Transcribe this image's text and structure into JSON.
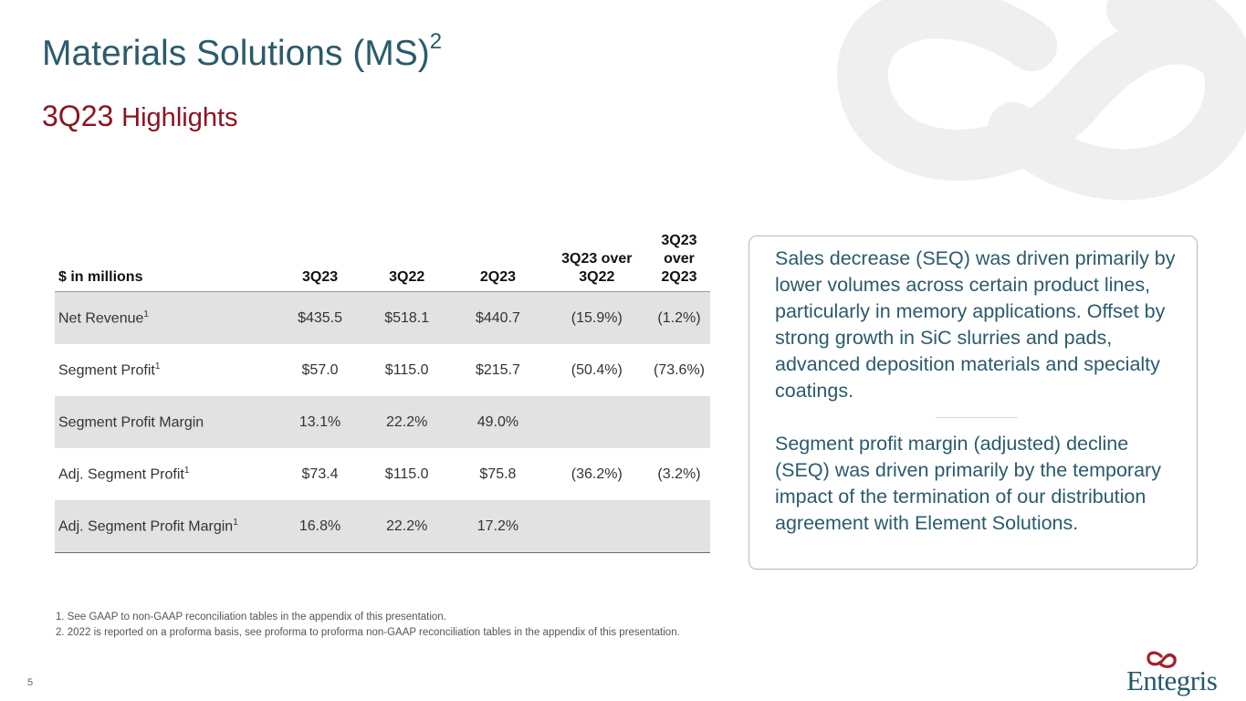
{
  "header": {
    "title": "Materials Solutions (MS)",
    "title_sup": "2",
    "subtitle_period": "3Q23",
    "subtitle_text": "Highlights"
  },
  "table": {
    "columns": [
      {
        "l1": "",
        "l2": "$ in millions"
      },
      {
        "l1": "",
        "l2": "3Q23"
      },
      {
        "l1": "",
        "l2": "3Q22"
      },
      {
        "l1": "",
        "l2": "2Q23"
      },
      {
        "l1": "3Q23 over",
        "l2": "3Q22"
      },
      {
        "l1": "3Q23 over",
        "l2": "2Q23"
      }
    ],
    "rows": [
      {
        "label": "Net Revenue",
        "sup": "1",
        "q323": "$435.5",
        "q322": "$518.1",
        "q223": "$440.7",
        "yoy": "(15.9%)",
        "seq": "(1.2%)"
      },
      {
        "label": "Segment Profit",
        "sup": "1",
        "q323": "$57.0",
        "q322": "$115.0",
        "q223": "$215.7",
        "yoy": "(50.4%)",
        "seq": "(73.6%)"
      },
      {
        "label": "Segment Profit Margin",
        "sup": "",
        "q323": "13.1%",
        "q322": "22.2%",
        "q223": "49.0%",
        "yoy": "",
        "seq": ""
      },
      {
        "label": "Adj. Segment Profit",
        "sup": "1",
        "q323": "$73.4",
        "q322": "$115.0",
        "q223": "$75.8",
        "yoy": "(36.2%)",
        "seq": "(3.2%)"
      },
      {
        "label": "Adj. Segment Profit Margin",
        "sup": "1",
        "q323": "16.8%",
        "q322": "22.2%",
        "q223": "17.2%",
        "yoy": "",
        "seq": ""
      }
    ]
  },
  "commentary": {
    "paragraph1": "Sales decrease (SEQ) was driven primarily by lower volumes across certain product lines, particularly in memory applications. Offset by strong growth in SiC slurries and pads, advanced deposition materials and specialty coatings.",
    "paragraph2": "Segment profit margin (adjusted) decline (SEQ) was driven primarily by the temporary impact of the termination of our distribution agreement with Element Solutions."
  },
  "footnotes": [
    "1. See GAAP to non-GAAP reconciliation tables in the appendix of this presentation.",
    "2. 2022 is reported on a proforma basis, see proforma to proforma non-GAAP reconciliation tables in the appendix of this presentation."
  ],
  "page_number": "5",
  "logo": {
    "text": "Entegris"
  },
  "colors": {
    "title": "#2a5b6b",
    "subtitle": "#8b1420",
    "row_shade": "#e2e2e2",
    "logo_mark": "#a3202c"
  }
}
